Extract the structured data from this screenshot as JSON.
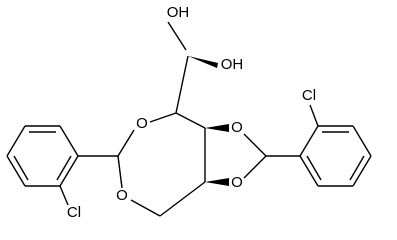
{
  "atoms": [
    {
      "label": "OH"
    },
    {
      "label": "OH"
    },
    {
      "label": "O"
    },
    {
      "label": "O"
    },
    {
      "label": "O"
    },
    {
      "label": "O"
    },
    {
      "label": "Cl"
    },
    {
      "label": "Cl"
    }
  ]
}
